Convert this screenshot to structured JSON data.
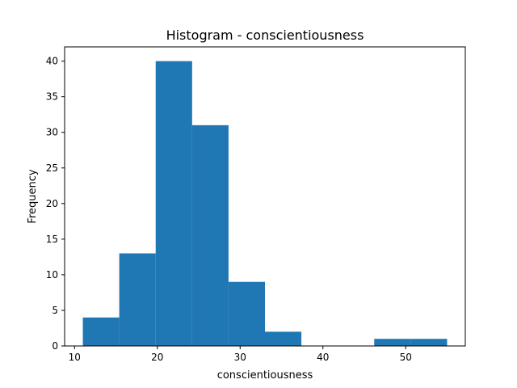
{
  "chart_data": {
    "type": "bar",
    "title": "Histogram - conscientiousness",
    "xlabel": "conscientiousness",
    "ylabel": "Frequency",
    "bins": [
      {
        "x0": 11.0,
        "x1": 15.4,
        "count": 4
      },
      {
        "x0": 15.4,
        "x1": 19.8,
        "count": 13
      },
      {
        "x0": 19.8,
        "x1": 24.2,
        "count": 40
      },
      {
        "x0": 24.2,
        "x1": 28.6,
        "count": 31
      },
      {
        "x0": 28.6,
        "x1": 33.0,
        "count": 9
      },
      {
        "x0": 33.0,
        "x1": 37.4,
        "count": 2
      },
      {
        "x0": 37.4,
        "x1": 41.8,
        "count": 0
      },
      {
        "x0": 41.8,
        "x1": 46.2,
        "count": 0
      },
      {
        "x0": 46.2,
        "x1": 50.6,
        "count": 1
      },
      {
        "x0": 50.6,
        "x1": 55.0,
        "count": 1
      }
    ],
    "xlim": [
      8.8,
      57.2
    ],
    "ylim": [
      0,
      42
    ],
    "xticks": [
      10,
      20,
      30,
      40,
      50
    ],
    "yticks": [
      0,
      5,
      10,
      15,
      20,
      25,
      30,
      35,
      40
    ],
    "bar_color": "#1f77b4",
    "grid": false
  }
}
